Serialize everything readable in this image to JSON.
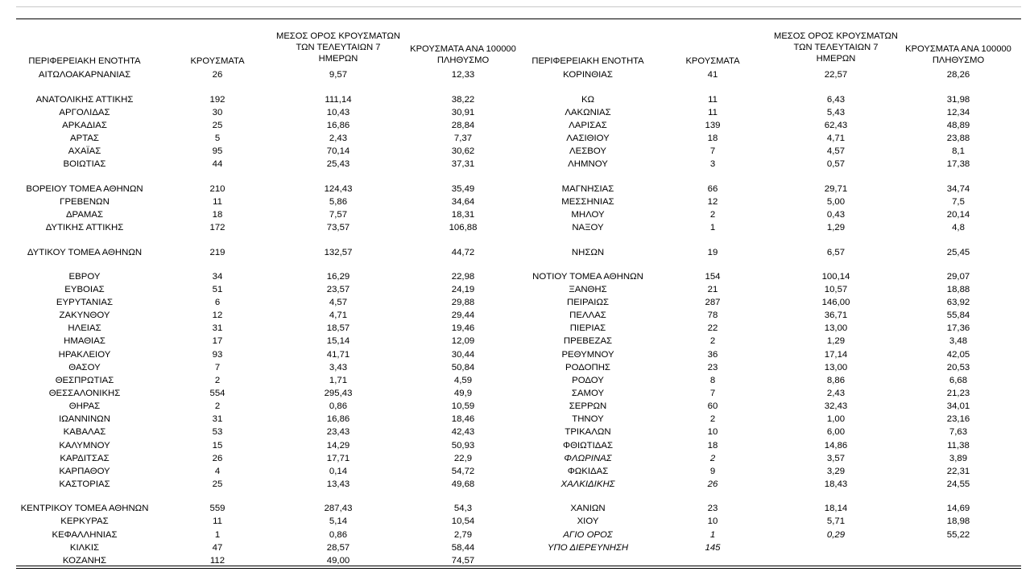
{
  "headers": {
    "region": "ΠΕΡΙΦΕΡΕΙΑΚΗ ΕΝΟΤΗΤΑ",
    "cases": "ΚΡΟΥΣΜΑΤΑ",
    "avg7": "ΜΕΣΟΣ ΟΡΟΣ ΚΡΟΥΣΜΑΤΩΝ\nΤΩΝ ΤΕΛΕΥΤΑΙΩΝ 7\nΗΜΕΡΩΝ",
    "per100k": "ΚΡΟΥΣΜΑΤΑ ΑΝΑ 100000\nΠΛΗΘΥΣΜΟ"
  },
  "left": [
    {
      "region": "ΑΙΤΩΛΟΑΚΑΡΝΑΝΙΑΣ",
      "cases": "26",
      "avg7": "9,57",
      "per100k": "12,33"
    },
    {
      "region": "ΑΝΑΤΟΛΙΚΗΣ ΑΤΤΙΚΗΣ",
      "cases": "192",
      "avg7": "111,14",
      "per100k": "38,22"
    },
    {
      "region": "ΑΡΓΟΛΙΔΑΣ",
      "cases": "30",
      "avg7": "10,43",
      "per100k": "30,91"
    },
    {
      "region": "ΑΡΚΑΔΙΑΣ",
      "cases": "25",
      "avg7": "16,86",
      "per100k": "28,84"
    },
    {
      "region": "ΑΡΤΑΣ",
      "cases": "5",
      "avg7": "2,43",
      "per100k": "7,37"
    },
    {
      "region": "ΑΧΑΪΑΣ",
      "cases": "95",
      "avg7": "70,14",
      "per100k": "30,62"
    },
    {
      "region": "ΒΟΙΩΤΙΑΣ",
      "cases": "44",
      "avg7": "25,43",
      "per100k": "37,31"
    },
    {
      "region": "ΒΟΡΕΙΟΥ ΤΟΜΕΑ ΑΘΗΝΩΝ",
      "cases": "210",
      "avg7": "124,43",
      "per100k": "35,49"
    },
    {
      "region": "ΓΡΕΒΕΝΩΝ",
      "cases": "11",
      "avg7": "5,86",
      "per100k": "34,64"
    },
    {
      "region": "ΔΡΑΜΑΣ",
      "cases": "18",
      "avg7": "7,57",
      "per100k": "18,31"
    },
    {
      "region": "ΔΥΤΙΚΗΣ ΑΤΤΙΚΗΣ",
      "cases": "172",
      "avg7": "73,57",
      "per100k": "106,88"
    },
    {
      "region": "ΔΥΤΙΚΟΥ ΤΟΜΕΑ ΑΘΗΝΩΝ",
      "cases": "219",
      "avg7": "132,57",
      "per100k": "44,72"
    },
    {
      "region": "ΕΒΡΟΥ",
      "cases": "34",
      "avg7": "16,29",
      "per100k": "22,98"
    },
    {
      "region": "ΕΥΒΟΙΑΣ",
      "cases": "51",
      "avg7": "23,57",
      "per100k": "24,19"
    },
    {
      "region": "ΕΥΡΥΤΑΝΙΑΣ",
      "cases": "6",
      "avg7": "4,57",
      "per100k": "29,88"
    },
    {
      "region": "ΖΑΚΥΝΘΟΥ",
      "cases": "12",
      "avg7": "4,71",
      "per100k": "29,44"
    },
    {
      "region": "ΗΛΕΙΑΣ",
      "cases": "31",
      "avg7": "18,57",
      "per100k": "19,46"
    },
    {
      "region": "ΗΜΑΘΙΑΣ",
      "cases": "17",
      "avg7": "15,14",
      "per100k": "12,09"
    },
    {
      "region": "ΗΡΑΚΛΕΙΟΥ",
      "cases": "93",
      "avg7": "41,71",
      "per100k": "30,44"
    },
    {
      "region": "ΘΑΣΟΥ",
      "cases": "7",
      "avg7": "3,43",
      "per100k": "50,84"
    },
    {
      "region": "ΘΕΣΠΡΩΤΙΑΣ",
      "cases": "2",
      "avg7": "1,71",
      "per100k": "4,59"
    },
    {
      "region": "ΘΕΣΣΑΛΟΝΙΚΗΣ",
      "cases": "554",
      "avg7": "295,43",
      "per100k": "49,9"
    },
    {
      "region": "ΘΗΡΑΣ",
      "cases": "2",
      "avg7": "0,86",
      "per100k": "10,59"
    },
    {
      "region": "ΙΩΑΝΝΙΝΩΝ",
      "cases": "31",
      "avg7": "16,86",
      "per100k": "18,46"
    },
    {
      "region": "ΚΑΒΑΛΑΣ",
      "cases": "53",
      "avg7": "23,43",
      "per100k": "42,43"
    },
    {
      "region": "ΚΑΛΥΜΝΟΥ",
      "cases": "15",
      "avg7": "14,29",
      "per100k": "50,93"
    },
    {
      "region": "ΚΑΡΔΙΤΣΑΣ",
      "cases": "26",
      "avg7": "17,71",
      "per100k": "22,9"
    },
    {
      "region": "ΚΑΡΠΑΘΟΥ",
      "cases": "4",
      "avg7": "0,14",
      "per100k": "54,72"
    },
    {
      "region": "ΚΑΣΤΟΡΙΑΣ",
      "cases": "25",
      "avg7": "13,43",
      "per100k": "49,68"
    },
    {
      "region": "ΚΕΝΤΡΙΚΟΥ ΤΟΜΕΑ ΑΘΗΝΩΝ",
      "cases": "559",
      "avg7": "287,43",
      "per100k": "54,3"
    },
    {
      "region": "ΚΕΡΚΥΡΑΣ",
      "cases": "11",
      "avg7": "5,14",
      "per100k": "10,54"
    },
    {
      "region": "ΚΕΦΑΛΛΗΝΙΑΣ",
      "cases": "1",
      "avg7": "0,86",
      "per100k": "2,79"
    },
    {
      "region": "ΚΙΛΚΙΣ",
      "cases": "47",
      "avg7": "28,57",
      "per100k": "58,44"
    },
    {
      "region": "ΚΟΖΑΝΗΣ",
      "cases": "112",
      "avg7": "49,00",
      "per100k": "74,57"
    }
  ],
  "right": [
    {
      "region": "ΚΟΡΙΝΘΙΑΣ",
      "cases": "41",
      "avg7": "22,57",
      "per100k": "28,26"
    },
    {
      "region": "ΚΩ",
      "cases": "11",
      "avg7": "6,43",
      "per100k": "31,98"
    },
    {
      "region": "ΛΑΚΩΝΙΑΣ",
      "cases": "11",
      "avg7": "5,43",
      "per100k": "12,34"
    },
    {
      "region": "ΛΑΡΙΣΑΣ",
      "cases": "139",
      "avg7": "62,43",
      "per100k": "48,89"
    },
    {
      "region": "ΛΑΣΙΘΙΟΥ",
      "cases": "18",
      "avg7": "4,71",
      "per100k": "23,88"
    },
    {
      "region": "ΛΕΣΒΟΥ",
      "cases": "7",
      "avg7": "4,57",
      "per100k": "8,1"
    },
    {
      "region": "ΛΗΜΝΟΥ",
      "cases": "3",
      "avg7": "0,57",
      "per100k": "17,38"
    },
    {
      "region": "ΜΑΓΝΗΣΙΑΣ",
      "cases": "66",
      "avg7": "29,71",
      "per100k": "34,74"
    },
    {
      "region": "ΜΕΣΣΗΝΙΑΣ",
      "cases": "12",
      "avg7": "5,00",
      "per100k": "7,5"
    },
    {
      "region": "ΜΗΛΟΥ",
      "cases": "2",
      "avg7": "0,43",
      "per100k": "20,14"
    },
    {
      "region": "ΝΑΞΟΥ",
      "cases": "1",
      "avg7": "1,29",
      "per100k": "4,8"
    },
    {
      "region": "ΝΗΣΩΝ",
      "cases": "19",
      "avg7": "6,57",
      "per100k": "25,45"
    },
    {
      "region": "ΝΟΤΙΟΥ ΤΟΜΕΑ ΑΘΗΝΩΝ",
      "cases": "154",
      "avg7": "100,14",
      "per100k": "29,07"
    },
    {
      "region": "ΞΑΝΘΗΣ",
      "cases": "21",
      "avg7": "10,57",
      "per100k": "18,88"
    },
    {
      "region": "ΠΕΙΡΑΙΩΣ",
      "cases": "287",
      "avg7": "146,00",
      "per100k": "63,92"
    },
    {
      "region": "ΠΕΛΛΑΣ",
      "cases": "78",
      "avg7": "36,71",
      "per100k": "55,84"
    },
    {
      "region": "ΠΙΕΡΙΑΣ",
      "cases": "22",
      "avg7": "13,00",
      "per100k": "17,36"
    },
    {
      "region": "ΠΡΕΒΕΖΑΣ",
      "cases": "2",
      "avg7": "1,29",
      "per100k": "3,48"
    },
    {
      "region": "ΡΕΘΥΜΝΟΥ",
      "cases": "36",
      "avg7": "17,14",
      "per100k": "42,05"
    },
    {
      "region": "ΡΟΔΟΠΗΣ",
      "cases": "23",
      "avg7": "13,00",
      "per100k": "20,53"
    },
    {
      "region": "ΡΟΔΟΥ",
      "cases": "8",
      "avg7": "8,86",
      "per100k": "6,68"
    },
    {
      "region": "ΣΑΜΟΥ",
      "cases": "7",
      "avg7": "2,43",
      "per100k": "21,23"
    },
    {
      "region": "ΣΕΡΡΩΝ",
      "cases": "60",
      "avg7": "32,43",
      "per100k": "34,01"
    },
    {
      "region": "ΤΗΝΟΥ",
      "cases": "2",
      "avg7": "1,00",
      "per100k": "23,16"
    },
    {
      "region": "ΤΡΙΚΑΛΩΝ",
      "cases": "10",
      "avg7": "6,00",
      "per100k": "7,63"
    },
    {
      "region": "ΦΘΙΩΤΙΔΑΣ",
      "cases": "18",
      "avg7": "14,86",
      "per100k": "11,38"
    },
    {
      "region": "ΦΛΩΡΙΝΑΣ",
      "cases": "2",
      "avg7": "3,57",
      "per100k": "3,89"
    },
    {
      "region": "ΦΩΚΙΔΑΣ",
      "cases": "9",
      "avg7": "3,29",
      "per100k": "22,31"
    },
    {
      "region": "ΧΑΛΚΙΔΙΚΗΣ",
      "cases": "26",
      "avg7": "18,43",
      "per100k": "24,55"
    },
    {
      "region": "ΧΑΝΙΩΝ",
      "cases": "23",
      "avg7": "18,14",
      "per100k": "14,69"
    },
    {
      "region": "ΧΙΟΥ",
      "cases": "10",
      "avg7": "5,71",
      "per100k": "18,98"
    },
    {
      "region": "ΑΓΙΟ ΟΡΟΣ",
      "cases": "1",
      "avg7": "0,29",
      "per100k": "55,22"
    },
    {
      "region": "ΥΠΟ ΔΙΕΡΕΥΝΗΣΗ",
      "cases": "145",
      "avg7": "",
      "per100k": ""
    }
  ]
}
